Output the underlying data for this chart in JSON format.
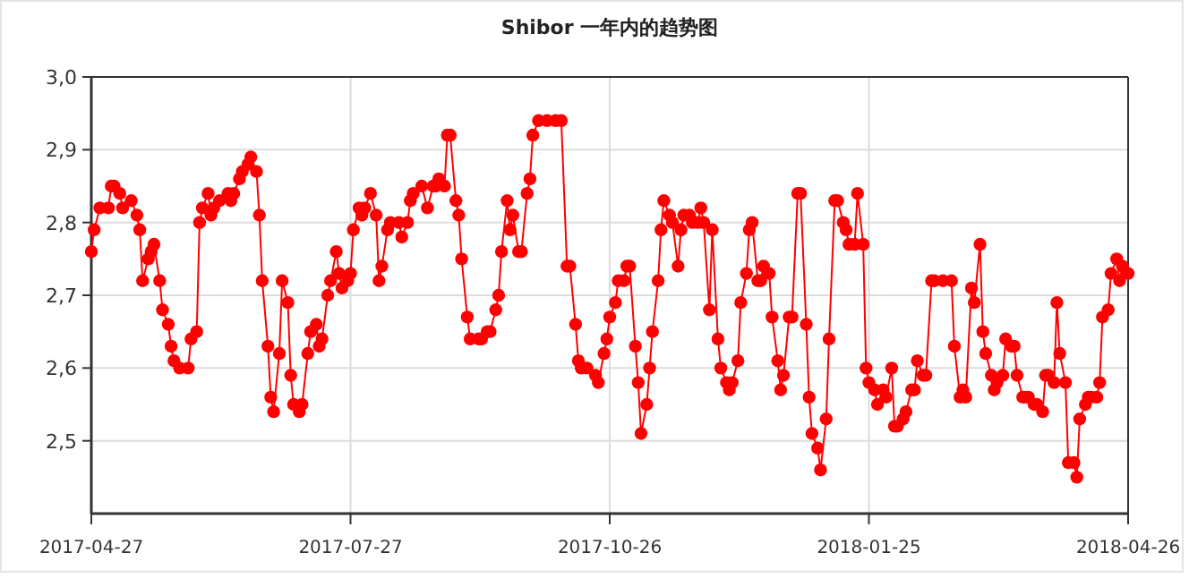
{
  "chart_data": {
    "type": "line",
    "title": "Shibor 一年内的趋势图",
    "xlim": [
      "2017-04-27",
      "2018-04-26"
    ],
    "xticks": [
      "2017-04-27",
      "2017-07-27",
      "2017-10-26",
      "2018-01-25",
      "2018-04-26"
    ],
    "ylim": [
      2.4,
      3.0
    ],
    "yticks": [
      {
        "value": 2.5,
        "label": "2,5"
      },
      {
        "value": 2.6,
        "label": "2,6"
      },
      {
        "value": 2.7,
        "label": "2,7"
      },
      {
        "value": 2.8,
        "label": "2,8"
      },
      {
        "value": 2.9,
        "label": "2,9"
      },
      {
        "value": 3.0,
        "label": "3,0"
      }
    ],
    "grid": true,
    "marker": "circle",
    "line_style": "solid",
    "x": [
      "2017-04-27",
      "2017-04-28",
      "2017-04-30",
      "2017-05-03",
      "2017-05-04",
      "2017-05-05",
      "2017-05-07",
      "2017-05-08",
      "2017-05-11",
      "2017-05-13",
      "2017-05-14",
      "2017-05-15",
      "2017-05-17",
      "2017-05-18",
      "2017-05-19",
      "2017-05-21",
      "2017-05-22",
      "2017-05-24",
      "2017-05-25",
      "2017-05-26",
      "2017-05-28",
      "2017-05-31",
      "2017-06-01",
      "2017-06-03",
      "2017-06-04",
      "2017-06-05",
      "2017-06-07",
      "2017-06-08",
      "2017-06-09",
      "2017-06-11",
      "2017-06-14",
      "2017-06-15",
      "2017-06-16",
      "2017-06-18",
      "2017-06-19",
      "2017-06-21",
      "2017-06-22",
      "2017-06-24",
      "2017-06-25",
      "2017-06-26",
      "2017-06-28",
      "2017-06-29",
      "2017-06-30",
      "2017-07-02",
      "2017-07-03",
      "2017-07-05",
      "2017-07-06",
      "2017-07-07",
      "2017-07-09",
      "2017-07-10",
      "2017-07-12",
      "2017-07-13",
      "2017-07-15",
      "2017-07-16",
      "2017-07-17",
      "2017-07-19",
      "2017-07-20",
      "2017-07-22",
      "2017-07-23",
      "2017-07-24",
      "2017-07-26",
      "2017-07-27",
      "2017-07-28",
      "2017-07-30",
      "2017-07-31",
      "2017-08-01",
      "2017-08-03",
      "2017-08-05",
      "2017-08-06",
      "2017-08-07",
      "2017-08-09",
      "2017-08-10",
      "2017-08-13",
      "2017-08-14",
      "2017-08-16",
      "2017-08-17",
      "2017-08-18",
      "2017-08-21",
      "2017-08-23",
      "2017-08-25",
      "2017-08-26",
      "2017-08-27",
      "2017-08-29",
      "2017-08-30",
      "2017-08-31",
      "2017-09-02",
      "2017-09-03",
      "2017-09-04",
      "2017-09-06",
      "2017-09-07",
      "2017-09-10",
      "2017-09-11",
      "2017-09-13",
      "2017-09-14",
      "2017-09-16",
      "2017-09-17",
      "2017-09-18",
      "2017-09-20",
      "2017-09-21",
      "2017-09-22",
      "2017-09-24",
      "2017-09-25",
      "2017-09-27",
      "2017-09-28",
      "2017-09-29",
      "2017-10-01",
      "2017-10-04",
      "2017-10-07",
      "2017-10-09",
      "2017-10-11",
      "2017-10-12",
      "2017-10-14",
      "2017-10-15",
      "2017-10-16",
      "2017-10-18",
      "2017-10-21",
      "2017-10-22",
      "2017-10-24",
      "2017-10-25",
      "2017-10-26",
      "2017-10-28",
      "2017-10-29",
      "2017-10-31",
      "2017-11-01",
      "2017-11-02",
      "2017-11-04",
      "2017-11-05",
      "2017-11-06",
      "2017-11-08",
      "2017-11-09",
      "2017-11-10",
      "2017-11-12",
      "2017-11-13",
      "2017-11-14",
      "2017-11-16",
      "2017-11-17",
      "2017-11-19",
      "2017-11-20",
      "2017-11-21",
      "2017-11-23",
      "2017-11-24",
      "2017-11-26",
      "2017-11-27",
      "2017-11-28",
      "2017-11-30",
      "2017-12-01",
      "2017-12-03",
      "2017-12-04",
      "2017-12-06",
      "2017-12-07",
      "2017-12-08",
      "2017-12-10",
      "2017-12-11",
      "2017-12-13",
      "2017-12-14",
      "2017-12-15",
      "2017-12-17",
      "2017-12-18",
      "2017-12-19",
      "2017-12-21",
      "2017-12-22",
      "2017-12-24",
      "2017-12-25",
      "2017-12-26",
      "2017-12-28",
      "2017-12-29",
      "2017-12-31",
      "2018-01-01",
      "2018-01-03",
      "2018-01-04",
      "2018-01-05",
      "2018-01-07",
      "2018-01-08",
      "2018-01-10",
      "2018-01-11",
      "2018-01-13",
      "2018-01-14",
      "2018-01-16",
      "2018-01-17",
      "2018-01-18",
      "2018-01-20",
      "2018-01-21",
      "2018-01-23",
      "2018-01-24",
      "2018-01-25",
      "2018-01-27",
      "2018-01-28",
      "2018-01-30",
      "2018-01-31",
      "2018-02-02",
      "2018-02-03",
      "2018-02-04",
      "2018-02-06",
      "2018-02-07",
      "2018-02-09",
      "2018-02-10",
      "2018-02-11",
      "2018-02-13",
      "2018-02-14",
      "2018-02-16",
      "2018-02-17",
      "2018-02-20",
      "2018-02-23",
      "2018-02-24",
      "2018-02-26",
      "2018-02-27",
      "2018-02-28",
      "2018-03-02",
      "2018-03-03",
      "2018-03-05",
      "2018-03-06",
      "2018-03-07",
      "2018-03-09",
      "2018-03-10",
      "2018-03-11",
      "2018-03-13",
      "2018-03-14",
      "2018-03-16",
      "2018-03-17",
      "2018-03-18",
      "2018-03-20",
      "2018-03-21",
      "2018-03-22",
      "2018-03-24",
      "2018-03-25",
      "2018-03-27",
      "2018-03-28",
      "2018-03-29",
      "2018-03-31",
      "2018-04-01",
      "2018-04-02",
      "2018-04-04",
      "2018-04-05",
      "2018-04-07",
      "2018-04-08",
      "2018-04-09",
      "2018-04-11",
      "2018-04-12",
      "2018-04-13",
      "2018-04-15",
      "2018-04-16",
      "2018-04-17",
      "2018-04-19",
      "2018-04-20",
      "2018-04-22",
      "2018-04-23",
      "2018-04-24",
      "2018-04-26"
    ],
    "series": [
      {
        "color": "#ff0000",
        "values": [
          2.76,
          2.79,
          2.82,
          2.82,
          2.85,
          2.85,
          2.84,
          2.82,
          2.83,
          2.81,
          2.79,
          2.72,
          2.75,
          2.76,
          2.77,
          2.72,
          2.68,
          2.66,
          2.63,
          2.61,
          2.6,
          2.6,
          2.64,
          2.65,
          2.8,
          2.82,
          2.84,
          2.81,
          2.82,
          2.83,
          2.84,
          2.83,
          2.84,
          2.86,
          2.87,
          2.88,
          2.89,
          2.87,
          2.81,
          2.72,
          2.63,
          2.56,
          2.54,
          2.62,
          2.72,
          2.69,
          2.59,
          2.55,
          2.54,
          2.55,
          2.62,
          2.65,
          2.66,
          2.63,
          2.64,
          2.7,
          2.72,
          2.76,
          2.73,
          2.71,
          2.72,
          2.73,
          2.79,
          2.82,
          2.81,
          2.82,
          2.84,
          2.81,
          2.72,
          2.74,
          2.79,
          2.8,
          2.8,
          2.78,
          2.8,
          2.83,
          2.84,
          2.85,
          2.82,
          2.85,
          2.85,
          2.86,
          2.85,
          2.92,
          2.92,
          2.83,
          2.81,
          2.75,
          2.67,
          2.64,
          2.64,
          2.64,
          2.65,
          2.65,
          2.68,
          2.7,
          2.76,
          2.83,
          2.79,
          2.81,
          2.76,
          2.76,
          2.84,
          2.86,
          2.92,
          2.94,
          2.94,
          2.94,
          2.94,
          2.74,
          2.74,
          2.66,
          2.61,
          2.6,
          2.6,
          2.59,
          2.58,
          2.62,
          2.64,
          2.67,
          2.69,
          2.72,
          2.72,
          2.74,
          2.74,
          2.63,
          2.58,
          2.51,
          2.55,
          2.6,
          2.65,
          2.72,
          2.79,
          2.83,
          2.81,
          2.8,
          2.74,
          2.79,
          2.81,
          2.81,
          2.8,
          2.8,
          2.82,
          2.8,
          2.68,
          2.79,
          2.64,
          2.6,
          2.58,
          2.57,
          2.58,
          2.61,
          2.69,
          2.73,
          2.79,
          2.8,
          2.72,
          2.72,
          2.74,
          2.73,
          2.67,
          2.61,
          2.57,
          2.59,
          2.67,
          2.67,
          2.84,
          2.84,
          2.66,
          2.56,
          2.51,
          2.49,
          2.46,
          2.53,
          2.64,
          2.83,
          2.83,
          2.8,
          2.79,
          2.77,
          2.77,
          2.84,
          2.77,
          2.6,
          2.58,
          2.57,
          2.55,
          2.57,
          2.56,
          2.6,
          2.52,
          2.52,
          2.53,
          2.54,
          2.57,
          2.57,
          2.61,
          2.59,
          2.59,
          2.72,
          2.72,
          2.72,
          2.72,
          2.63,
          2.56,
          2.57,
          2.56,
          2.71,
          2.69,
          2.77,
          2.65,
          2.62,
          2.59,
          2.57,
          2.58,
          2.59,
          2.64,
          2.63,
          2.63,
          2.59,
          2.56,
          2.56,
          2.56,
          2.55,
          2.55,
          2.54,
          2.59,
          2.59,
          2.58,
          2.69,
          2.62,
          2.58,
          2.47,
          2.47,
          2.45,
          2.53,
          2.55,
          2.56,
          2.56,
          2.56,
          2.58,
          2.67,
          2.68,
          2.73,
          2.75,
          2.72,
          2.74,
          2.73
        ]
      }
    ]
  }
}
